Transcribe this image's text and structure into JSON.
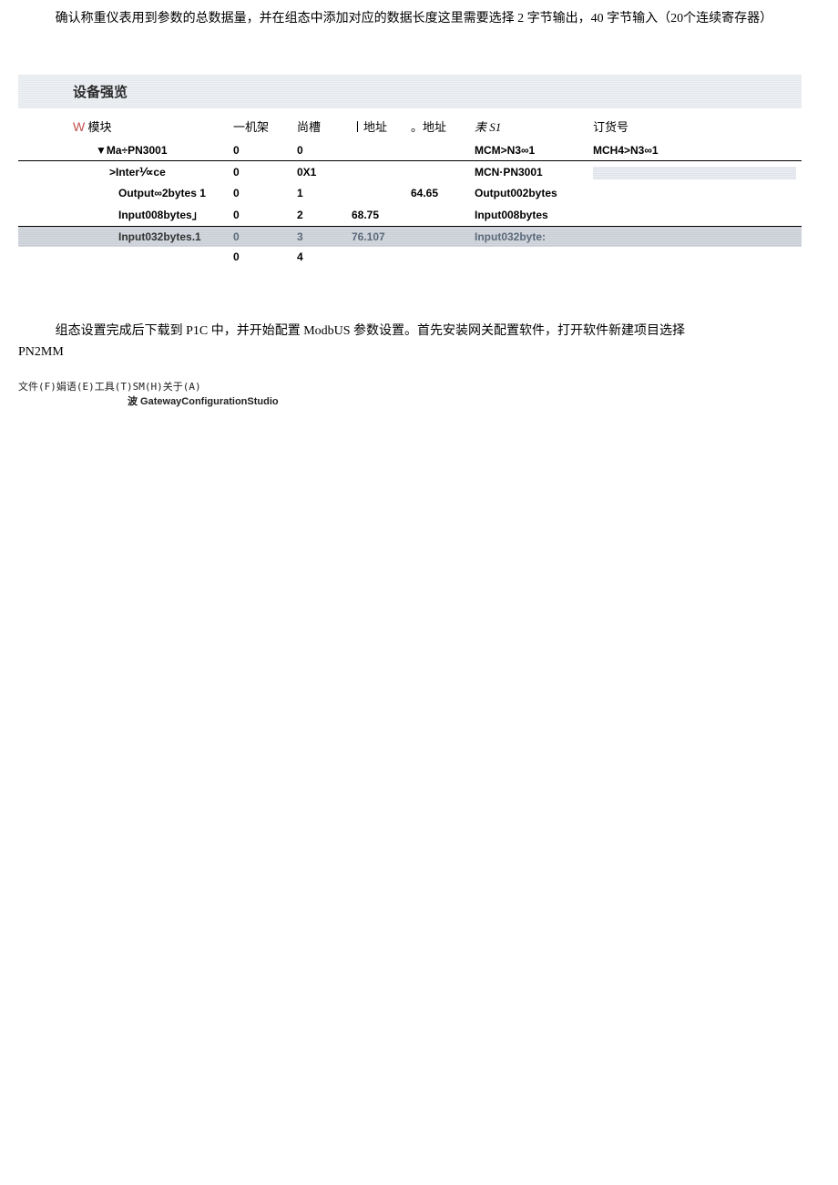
{
  "paragraph1": "确认称重仪表用到参数的总数据量，并在组态中添加对应的数据长度这里需要选择 2 字节输出，40 字节输入（20个连续寄存器）",
  "table": {
    "title": "设备强览",
    "headers": {
      "module_prefix": "W",
      "module": "模块",
      "rack": "一机架",
      "slot": "尚槽",
      "iaddr": "丨地址",
      "oaddr": "。地址",
      "type": "耒 S1",
      "order": "订货号"
    },
    "rows": [
      {
        "kind": "parent",
        "module": "▼Ma÷PN3001",
        "rack": "0",
        "slot": "0",
        "iaddr": "",
        "oaddr": "",
        "type": "MCM>N3∞1",
        "order": "MCH4>N3∞1"
      },
      {
        "kind": "child1",
        "module": ">Inter⅟∝ce",
        "rack": "0",
        "slot": "0X1",
        "iaddr": "",
        "oaddr": "",
        "type": "MCN·PN3001",
        "order_hl": true
      },
      {
        "kind": "child2",
        "module": "Output∞2bytes 1",
        "rack": "0",
        "slot": "1",
        "iaddr": "",
        "oaddr": "64.65",
        "type": "Output002bytes",
        "order": ""
      },
      {
        "kind": "child2b",
        "module": "Input008bytes」",
        "rack": "0",
        "slot": "2",
        "iaddr": "68.75",
        "oaddr": "",
        "type": "Input008bytes",
        "order": ""
      },
      {
        "kind": "selected",
        "module": "Input032bytes.1",
        "rack": "0",
        "slot": "3",
        "iaddr": "76.107",
        "oaddr": "",
        "type": "Input032byte:",
        "order": ""
      },
      {
        "kind": "last",
        "module": "",
        "rack": "0",
        "slot": "4",
        "iaddr": "",
        "oaddr": "",
        "type": "",
        "order": ""
      }
    ]
  },
  "paragraph2_a": "组态设置完成后下载到 P1C 中，并开始配置 ModbUS 参数设置。首先安装网关配置软件，打开软件新建项目选择",
  "paragraph2_b": "PN2MM",
  "menubar": {
    "line": "文件(F)娟语(E)工具(T)SM(H)关于(A)",
    "sub": "波 GatewayConfigurationStudio"
  }
}
